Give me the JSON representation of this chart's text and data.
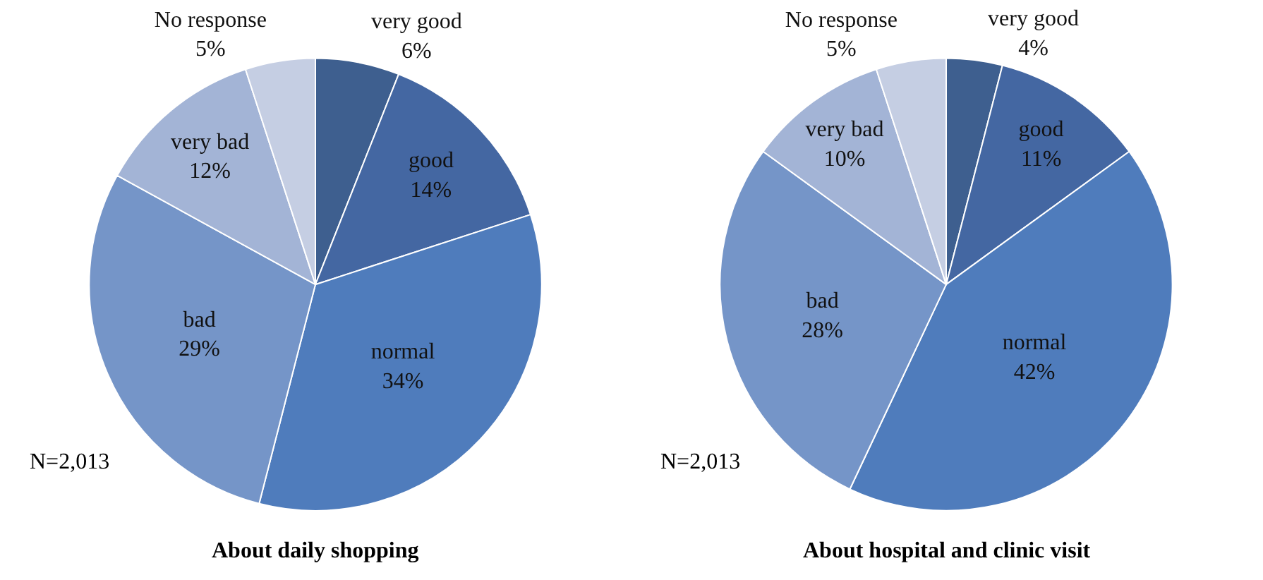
{
  "chart_data": [
    {
      "type": "pie",
      "title": "About daily shopping",
      "categories": [
        "very good",
        "good",
        "normal",
        "bad",
        "very bad",
        "No response"
      ],
      "values": [
        6,
        14,
        34,
        29,
        12,
        5
      ],
      "value_labels": [
        "6%",
        "14%",
        "34%",
        "29%",
        "12%",
        "5%"
      ],
      "colors": [
        "#3e5f8f",
        "#4467a2",
        "#4f7cbc",
        "#7595c8",
        "#a3b4d6",
        "#c5cee3"
      ],
      "annotations": [
        "N=2,013"
      ],
      "legend": false
    },
    {
      "type": "pie",
      "title": "About hospital and clinic visit",
      "categories": [
        "very good",
        "good",
        "normal",
        "bad",
        "very bad",
        "No response"
      ],
      "values": [
        4,
        11,
        42,
        28,
        10,
        5
      ],
      "value_labels": [
        "4%",
        "11%",
        "42%",
        "28%",
        "10%",
        "5%"
      ],
      "colors": [
        "#3e5f8f",
        "#4467a2",
        "#4f7cbc",
        "#7595c8",
        "#a3b4d6",
        "#c5cee3"
      ],
      "annotations": [
        "N=2,013"
      ],
      "legend": false
    }
  ]
}
